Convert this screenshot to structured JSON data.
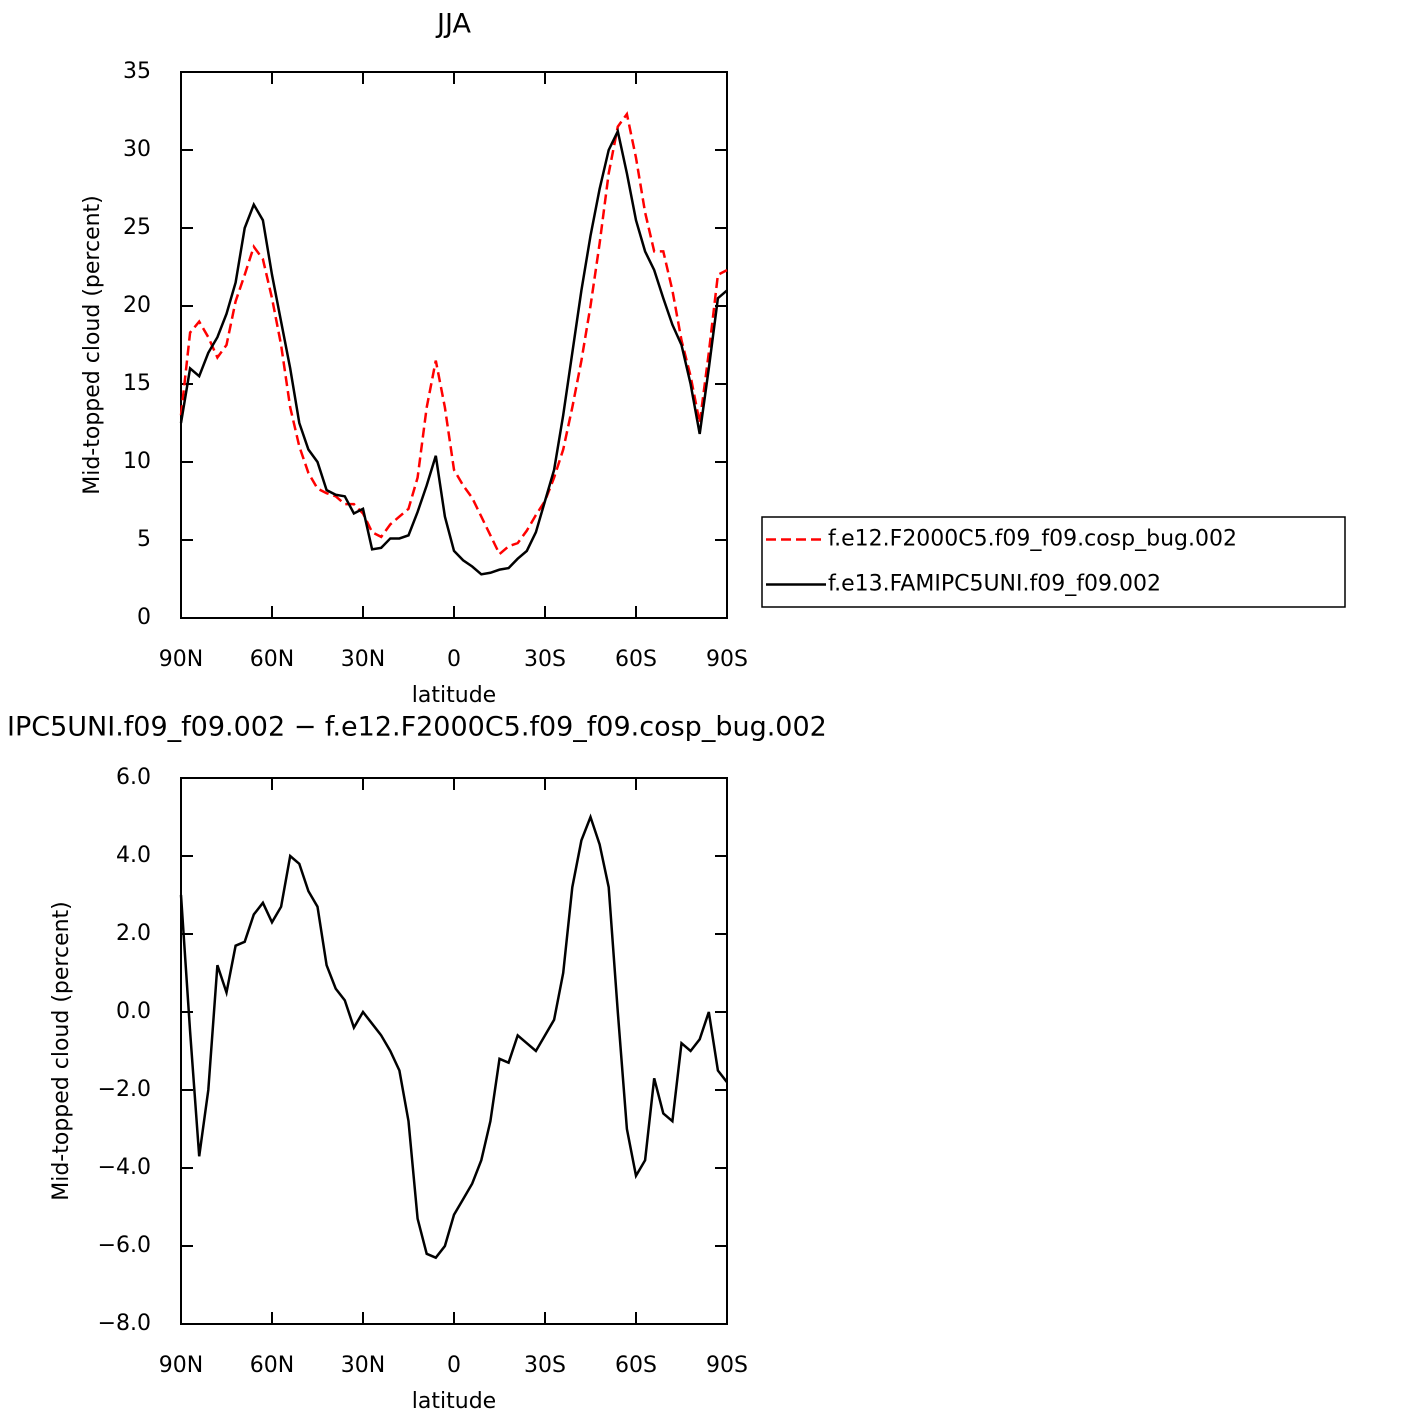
{
  "chart_data": [
    {
      "type": "line",
      "title": "JJA",
      "xlabel": "latitude",
      "ylabel": "Mid-topped cloud (percent)",
      "x": [
        90,
        87,
        84,
        81,
        78,
        75,
        72,
        69,
        66,
        63,
        60,
        57,
        54,
        51,
        48,
        45,
        42,
        39,
        36,
        33,
        30,
        27,
        24,
        21,
        18,
        15,
        12,
        9,
        6,
        3,
        0,
        -3,
        -6,
        -9,
        -12,
        -15,
        -18,
        -21,
        -24,
        -27,
        -30,
        -33,
        -36,
        -39,
        -42,
        -45,
        -48,
        -51,
        -54,
        -57,
        -60,
        -63,
        -66,
        -69,
        -72,
        -75,
        -78,
        -81,
        -84,
        -87,
        -90
      ],
      "series": [
        {
          "name": "f.e12.F2000C5.f09_f09.cosp_bug.002",
          "color": "#ff0000",
          "linestyle": "dashed",
          "values": [
            13,
            18.3,
            19,
            18,
            16.7,
            17.5,
            20.3,
            22,
            23.8,
            23,
            20.5,
            17.5,
            13.5,
            11,
            9.3,
            8.3,
            8,
            7.8,
            7.3,
            7.3,
            6.7,
            5.5,
            5.2,
            6.0,
            6.5,
            7.0,
            9,
            13.5,
            16.5,
            13.5,
            9.5,
            8.5,
            7.7,
            6.5,
            5.3,
            4.1,
            4.6,
            4.8,
            5.6,
            6.6,
            7.5,
            9,
            10.8,
            13.5,
            16.5,
            20,
            24,
            28.5,
            31.5,
            32.3,
            29.5,
            26,
            23.5,
            23.5,
            21,
            17.8,
            15.5,
            12.5,
            17,
            22,
            22.3
          ]
        },
        {
          "name": "f.e13.FAMIPC5UNI.f09_f09.002",
          "color": "#000000",
          "linestyle": "solid",
          "values": [
            12.5,
            16,
            15.5,
            17,
            18,
            19.5,
            21.5,
            25,
            26.5,
            25.5,
            22,
            19,
            16,
            12.5,
            10.8,
            10,
            8.2,
            7.9,
            7.8,
            6.7,
            7.0,
            4.4,
            4.5,
            5.1,
            5.1,
            5.3,
            6.8,
            8.5,
            10.4,
            6.5,
            4.3,
            3.7,
            3.3,
            2.8,
            2.9,
            3.1,
            3.2,
            3.8,
            4.3,
            5.5,
            7.5,
            9.5,
            13,
            17,
            21,
            24.5,
            27.5,
            30,
            31.2,
            28.5,
            25.5,
            23.5,
            22.3,
            20.5,
            18.8,
            17.5,
            15,
            11.8,
            16,
            20.5,
            21
          ]
        }
      ],
      "xlim": [
        90,
        -90
      ],
      "xticks": [
        {
          "value": 90,
          "label": "90N"
        },
        {
          "value": 60,
          "label": "60N"
        },
        {
          "value": 30,
          "label": "30N"
        },
        0,
        {
          "value": -30,
          "label": "30S"
        },
        {
          "value": -60,
          "label": "60S"
        },
        {
          "value": -90,
          "label": "90S"
        }
      ],
      "ylim": [
        0,
        35
      ],
      "yticks": [
        0,
        5,
        10,
        15,
        20,
        25,
        30,
        35
      ],
      "legend": "right",
      "grid": false
    },
    {
      "type": "line",
      "title": "IPC5UNI.f09_f09.002 − f.e12.F2000C5.f09_f09.cosp_bug.002",
      "xlabel": "latitude",
      "ylabel": "Mid-topped cloud (percent)",
      "x": [
        90,
        87,
        84,
        81,
        78,
        75,
        72,
        69,
        66,
        63,
        60,
        57,
        54,
        51,
        48,
        45,
        42,
        39,
        36,
        33,
        30,
        27,
        24,
        21,
        18,
        15,
        12,
        9,
        6,
        3,
        0,
        -3,
        -6,
        -9,
        -12,
        -15,
        -18,
        -21,
        -24,
        -27,
        -30,
        -33,
        -36,
        -39,
        -42,
        -45,
        -48,
        -51,
        -54,
        -57,
        -60,
        -63,
        -66,
        -69,
        -72,
        -75,
        -78,
        -81,
        -84,
        -87,
        -90
      ],
      "series": [
        {
          "color": "#000000",
          "linestyle": "solid",
          "values": [
            3.0,
            -0.5,
            -3.7,
            -2.0,
            1.2,
            0.5,
            1.7,
            1.8,
            2.5,
            2.8,
            2.3,
            2.7,
            4.0,
            3.8,
            3.1,
            2.7,
            1.2,
            0.6,
            0.3,
            -0.4,
            0.0,
            -0.3,
            -0.6,
            -1.0,
            -1.5,
            -2.8,
            -5.3,
            -6.2,
            -6.3,
            -6.0,
            -5.2,
            -4.8,
            -4.4,
            -3.8,
            -2.8,
            -1.2,
            -1.3,
            -0.6,
            -0.8,
            -1.0,
            -0.6,
            -0.2,
            1.0,
            3.2,
            4.4,
            5.0,
            4.3,
            3.2,
            0.0,
            -3.0,
            -4.2,
            -3.8,
            -1.7,
            -2.6,
            -2.8,
            -0.8,
            -1.0,
            -0.7,
            0.0,
            -1.5,
            -1.8
          ]
        }
      ],
      "xlim": [
        90,
        -90
      ],
      "xticks": [
        {
          "value": 90,
          "label": "90N"
        },
        {
          "value": 60,
          "label": "60N"
        },
        {
          "value": 30,
          "label": "30N"
        },
        0,
        {
          "value": -30,
          "label": "30S"
        },
        {
          "value": -60,
          "label": "60S"
        },
        {
          "value": -90,
          "label": "90S"
        }
      ],
      "ylim": [
        -8,
        6
      ],
      "yticks": [
        {
          "value": -8,
          "label": "−8.0"
        },
        {
          "value": -6,
          "label": "−6.0"
        },
        {
          "value": -4,
          "label": "−4.0"
        },
        {
          "value": -2,
          "label": "−2.0"
        },
        {
          "value": 0,
          "label": "0.0"
        },
        {
          "value": 2,
          "label": "2.0"
        },
        {
          "value": 4,
          "label": "4.0"
        },
        {
          "value": 6,
          "label": "6.0"
        }
      ],
      "grid": false
    }
  ]
}
